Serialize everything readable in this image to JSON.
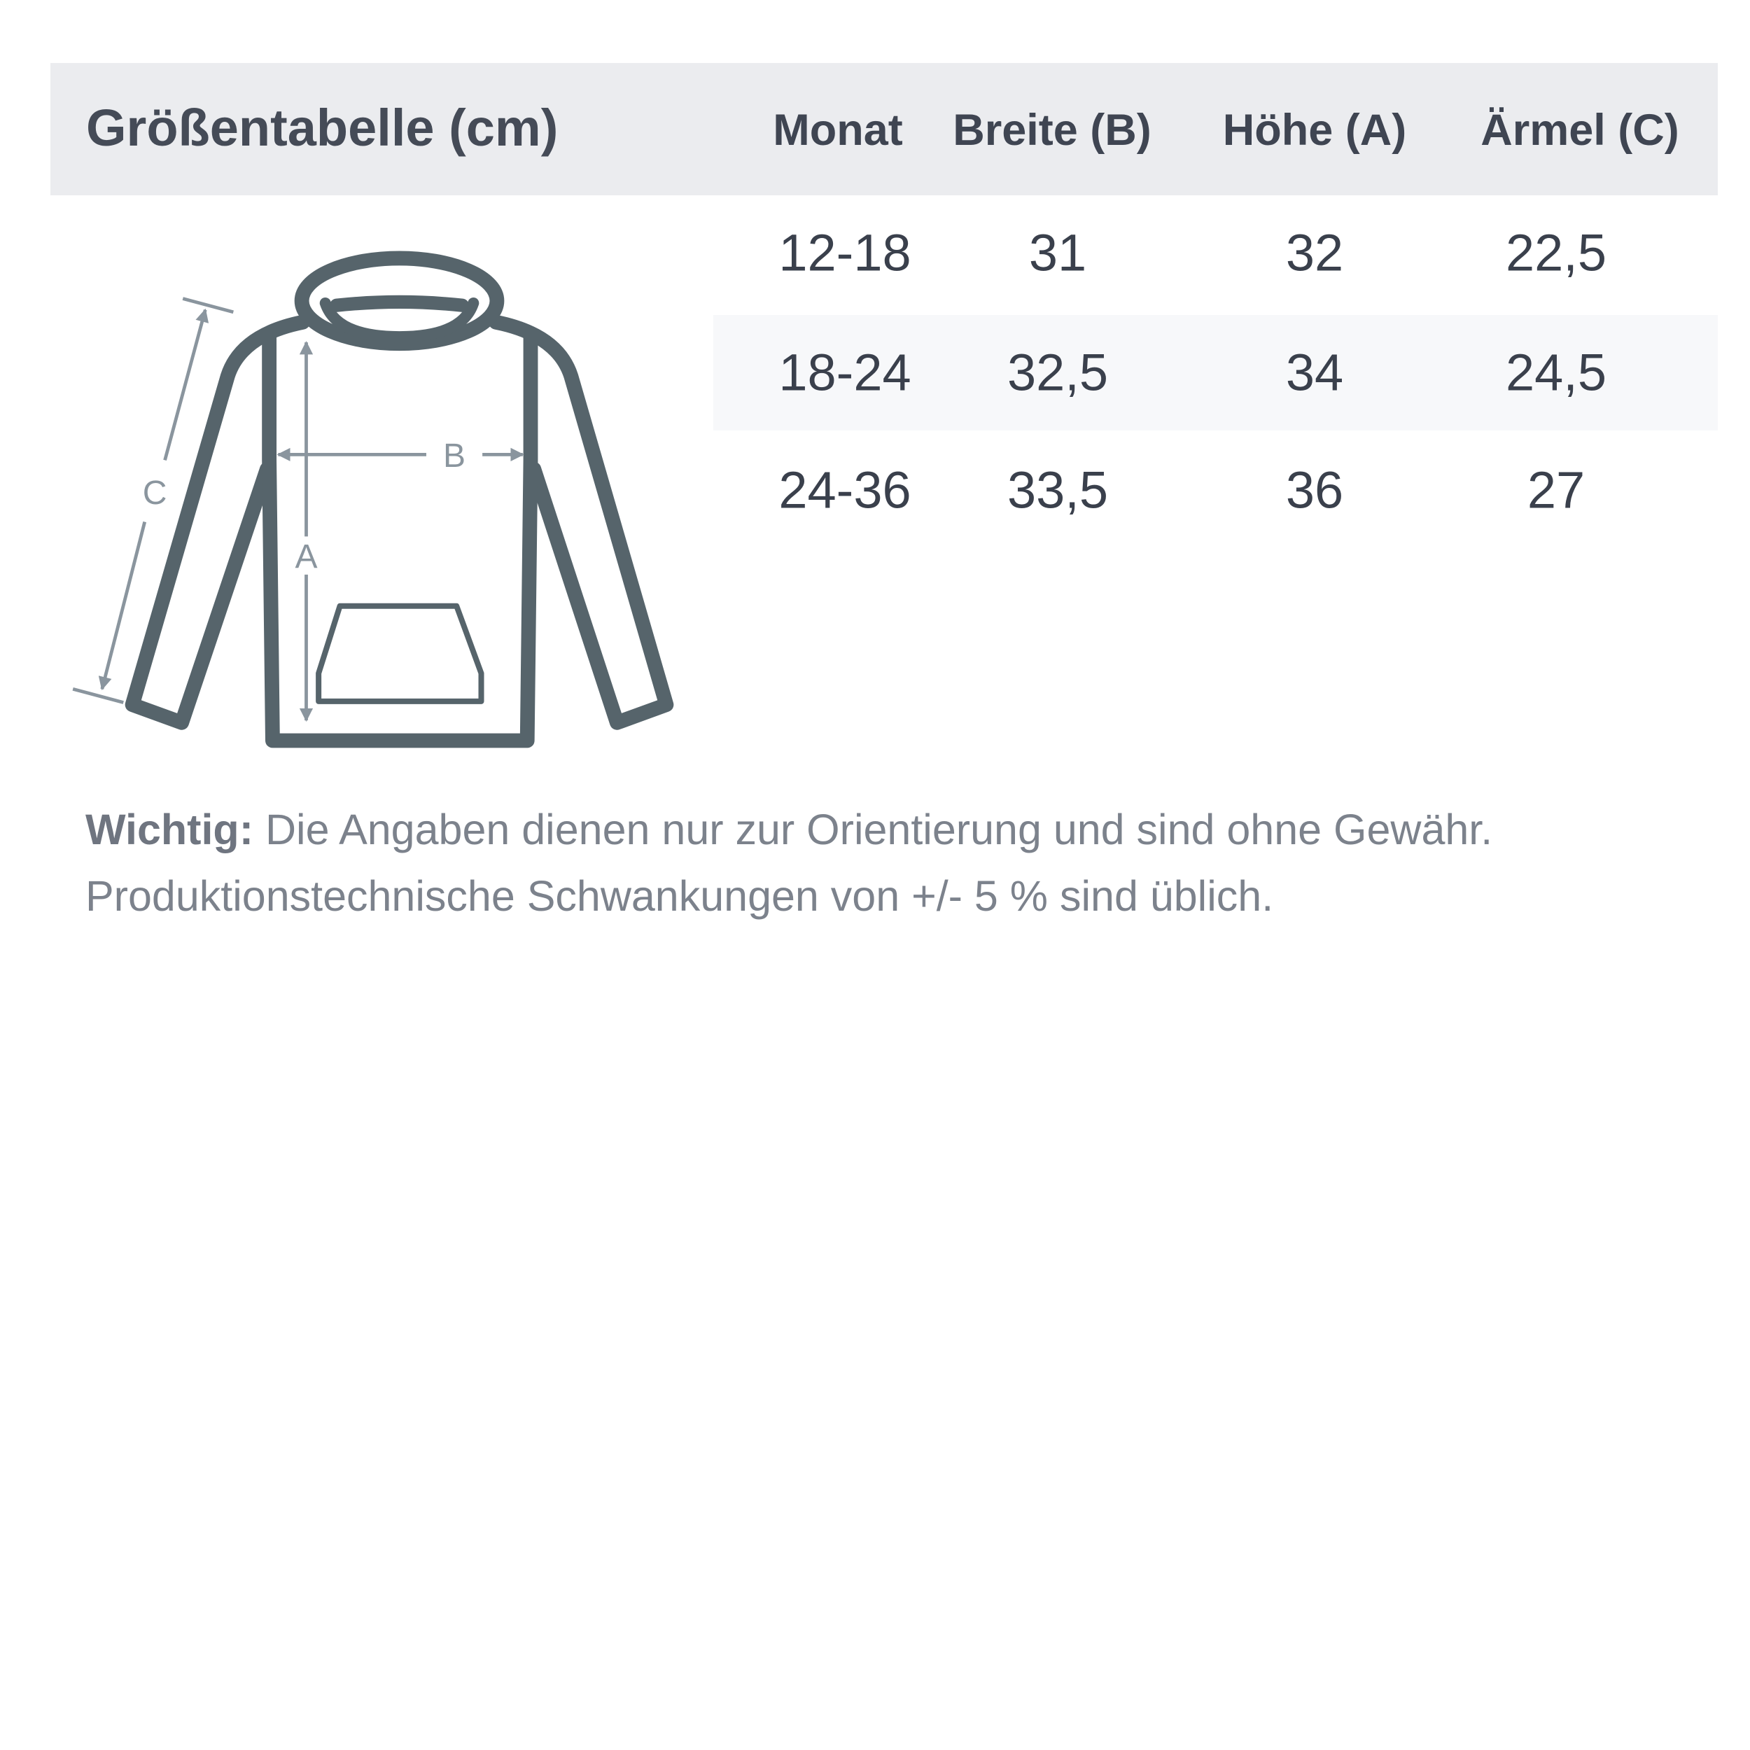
{
  "title": "Größentabelle (cm)",
  "columns": [
    "Monat",
    "Breite (B)",
    "Höhe (A)",
    "Ärmel (C)"
  ],
  "rows": [
    [
      "12-18",
      "31",
      "32",
      "22,5"
    ],
    [
      "18-24",
      "32,5",
      "34",
      "24,5"
    ],
    [
      "24-36",
      "33,5",
      "36",
      "27"
    ]
  ],
  "diagram": {
    "label_a": "A",
    "label_b": "B",
    "label_c": "C",
    "stroke_color": "#56646b",
    "measure_color": "#8a959e"
  },
  "note": {
    "bold": "Wichtig:",
    "line1": " Die Angaben dienen nur zur Orientierung und sind ohne Gewähr.",
    "line2": "Produktionstechnische Schwankungen von +/- 5 % sind üblich."
  }
}
